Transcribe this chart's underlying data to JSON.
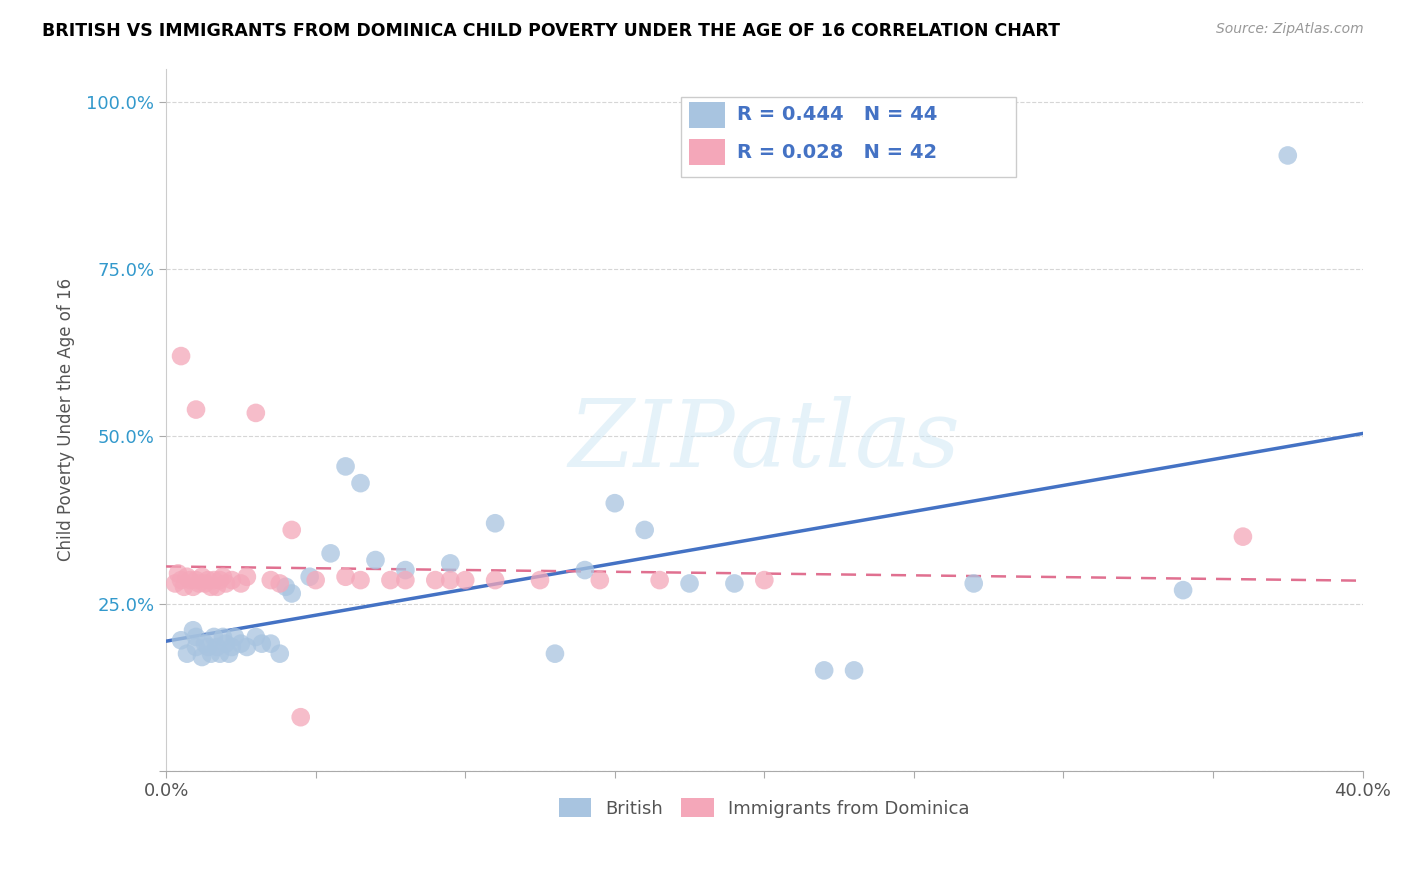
{
  "title": "BRITISH VS IMMIGRANTS FROM DOMINICA CHILD POVERTY UNDER THE AGE OF 16 CORRELATION CHART",
  "source": "Source: ZipAtlas.com",
  "ylabel": "Child Poverty Under the Age of 16",
  "x_min": 0.0,
  "x_max": 0.4,
  "y_min": 0.0,
  "y_max": 1.05,
  "british_R": 0.444,
  "british_N": 44,
  "dominica_R": 0.028,
  "dominica_N": 42,
  "watermark": "ZIPatlas",
  "blue_color": "#a8c4e0",
  "pink_color": "#f4a7b9",
  "blue_line_color": "#4472c4",
  "pink_line_color": "#e07090",
  "legend_text_color": "#4472c4",
  "british_x": [
    0.005,
    0.007,
    0.009,
    0.01,
    0.01,
    0.012,
    0.013,
    0.014,
    0.015,
    0.016,
    0.017,
    0.018,
    0.019,
    0.02,
    0.021,
    0.022,
    0.023,
    0.025,
    0.027,
    0.03,
    0.032,
    0.035,
    0.038,
    0.04,
    0.042,
    0.048,
    0.055,
    0.06,
    0.065,
    0.07,
    0.08,
    0.095,
    0.11,
    0.13,
    0.14,
    0.15,
    0.16,
    0.175,
    0.19,
    0.22,
    0.23,
    0.27,
    0.34,
    0.375
  ],
  "british_y": [
    0.195,
    0.175,
    0.21,
    0.185,
    0.2,
    0.17,
    0.19,
    0.185,
    0.175,
    0.2,
    0.185,
    0.175,
    0.2,
    0.19,
    0.175,
    0.185,
    0.2,
    0.19,
    0.185,
    0.2,
    0.19,
    0.19,
    0.175,
    0.275,
    0.265,
    0.29,
    0.325,
    0.455,
    0.43,
    0.315,
    0.3,
    0.31,
    0.37,
    0.175,
    0.3,
    0.4,
    0.36,
    0.28,
    0.28,
    0.15,
    0.15,
    0.28,
    0.27,
    0.92
  ],
  "dominica_x": [
    0.003,
    0.004,
    0.005,
    0.006,
    0.007,
    0.008,
    0.009,
    0.01,
    0.011,
    0.012,
    0.013,
    0.014,
    0.015,
    0.016,
    0.017,
    0.018,
    0.019,
    0.02,
    0.022,
    0.025,
    0.027,
    0.03,
    0.035,
    0.038,
    0.042,
    0.045,
    0.05,
    0.06,
    0.065,
    0.075,
    0.08,
    0.09,
    0.095,
    0.1,
    0.11,
    0.125,
    0.145,
    0.165,
    0.2,
    0.36,
    0.005,
    0.01
  ],
  "dominica_y": [
    0.28,
    0.295,
    0.285,
    0.275,
    0.29,
    0.285,
    0.275,
    0.285,
    0.28,
    0.29,
    0.28,
    0.285,
    0.275,
    0.285,
    0.275,
    0.285,
    0.29,
    0.28,
    0.285,
    0.28,
    0.29,
    0.535,
    0.285,
    0.28,
    0.36,
    0.08,
    0.285,
    0.29,
    0.285,
    0.285,
    0.285,
    0.285,
    0.285,
    0.285,
    0.285,
    0.285,
    0.285,
    0.285,
    0.285,
    0.35,
    0.62,
    0.54
  ]
}
